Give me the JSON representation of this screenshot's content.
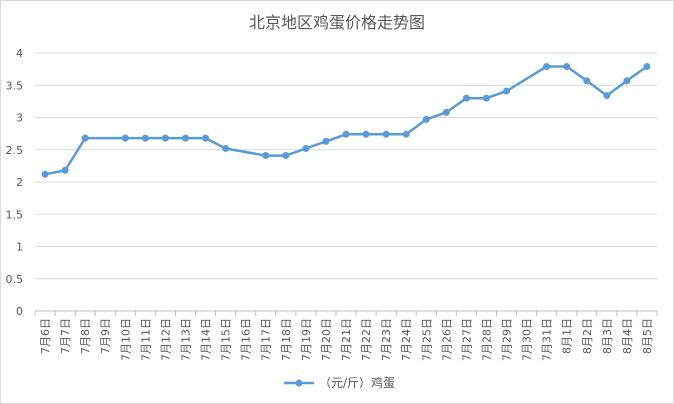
{
  "chart_data": {
    "type": "line",
    "title": "北京地区鸡蛋价格走势图",
    "xlabel": "",
    "ylabel": "",
    "ylim": [
      0,
      4
    ],
    "yticks": [
      0,
      0.5,
      1,
      1.5,
      2,
      2.5,
      3,
      3.5,
      4
    ],
    "grid": true,
    "legend_position": "bottom",
    "color": "#5b9bd5",
    "categories": [
      "7月6日",
      "7月7日",
      "7月8日",
      "7月9日",
      "7月10日",
      "7月11日",
      "7月12日",
      "7月13日",
      "7月14日",
      "7月15日",
      "7月16日",
      "7月17日",
      "7月18日",
      "7月19日",
      "7月20日",
      "7月21日",
      "7月22日",
      "7月23日",
      "7月24日",
      "7月25日",
      "7月26日",
      "7月27日",
      "7月28日",
      "7月29日",
      "7月30日",
      "7月31日",
      "8月1日",
      "8月2日",
      "8月3日",
      "8月4日",
      "8月5日"
    ],
    "series": [
      {
        "name": "（元/斤）鸡蛋",
        "values": [
          2.12,
          2.18,
          2.68,
          null,
          2.68,
          2.68,
          2.68,
          2.68,
          2.68,
          2.52,
          null,
          2.41,
          2.41,
          2.52,
          2.63,
          2.74,
          2.74,
          2.74,
          2.74,
          2.97,
          3.08,
          3.3,
          3.3,
          3.41,
          null,
          3.79,
          3.79,
          3.57,
          3.34,
          3.57,
          3.79
        ]
      }
    ]
  }
}
